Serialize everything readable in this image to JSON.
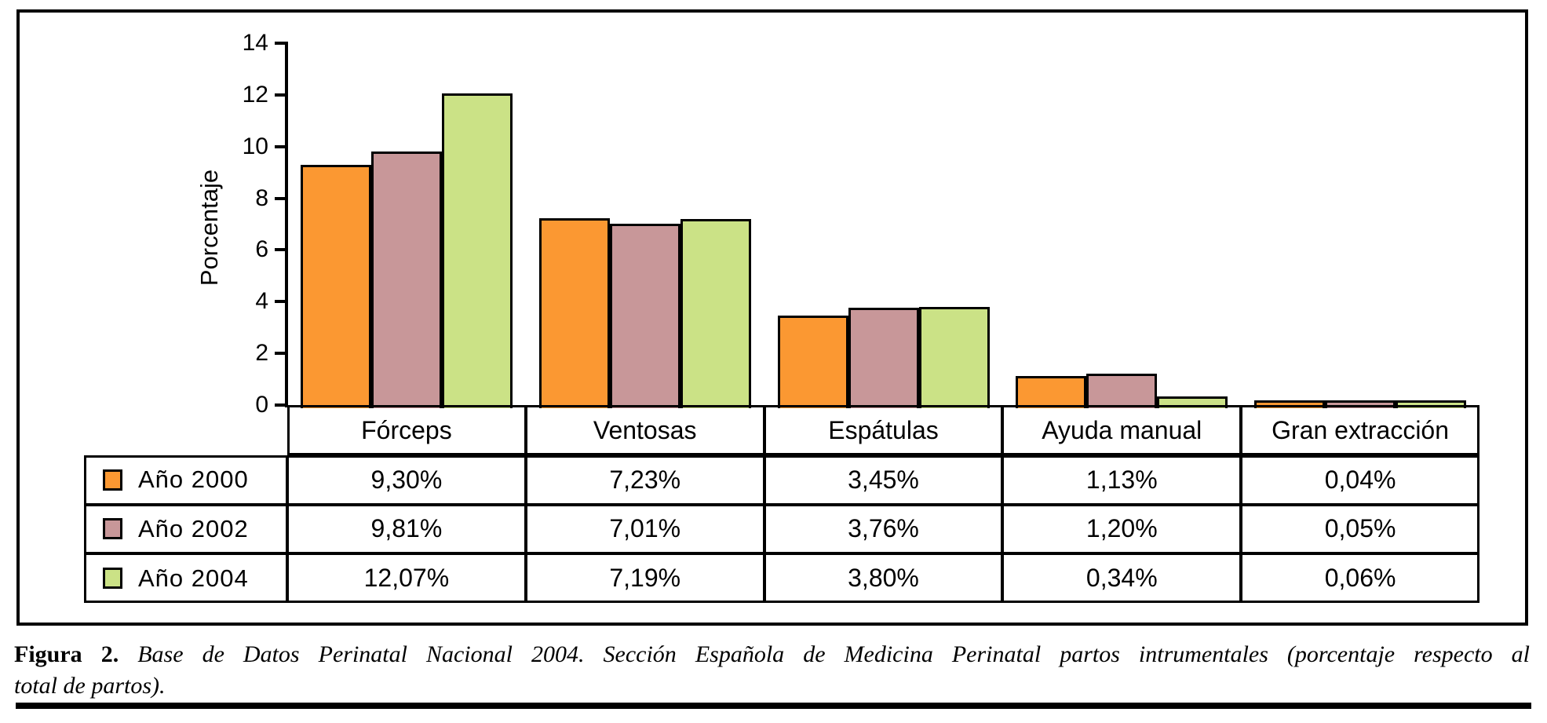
{
  "figure": {
    "caption_label": "Figura 2.",
    "caption_line1": "Base de Datos Perinatal Nacional 2004. Sección Española de Medicina Perinatal partos intrumentales (porcentaje respecto al",
    "caption_line2": "total de partos)."
  },
  "colors": {
    "bar_outline": "#000000",
    "series_2000": "#FB9832",
    "series_2002": "#C89799",
    "series_2004": "#CBE286"
  },
  "chart_data": {
    "type": "bar",
    "title": "",
    "xlabel": "",
    "ylabel": "Porcentaje",
    "ylim": [
      0,
      14
    ],
    "yticks": [
      0,
      2,
      4,
      6,
      8,
      10,
      12,
      14
    ],
    "grid": false,
    "legend_position": "table-left-column",
    "categories": [
      "Fórceps",
      "Ventosas",
      "Espátulas",
      "Ayuda manual",
      "Gran extracción"
    ],
    "series": [
      {
        "name": "Año 2000",
        "color": "#FB9832",
        "values": [
          9.3,
          7.23,
          3.45,
          1.13,
          0.04
        ],
        "labels": [
          "9,30%",
          "7,23%",
          "3,45%",
          "1,13%",
          "0,04%"
        ]
      },
      {
        "name": "Año 2002",
        "color": "#C89799",
        "values": [
          9.81,
          7.01,
          3.76,
          1.2,
          0.05
        ],
        "labels": [
          "9,81%",
          "7,01%",
          "3,76%",
          "1,20%",
          "0,05%"
        ]
      },
      {
        "name": "Año 2004",
        "color": "#CBE286",
        "values": [
          12.07,
          7.19,
          3.8,
          0.34,
          0.06
        ],
        "labels": [
          "12,07%",
          "7,19%",
          "3,80%",
          "0,34%",
          "0,06%"
        ]
      }
    ]
  }
}
